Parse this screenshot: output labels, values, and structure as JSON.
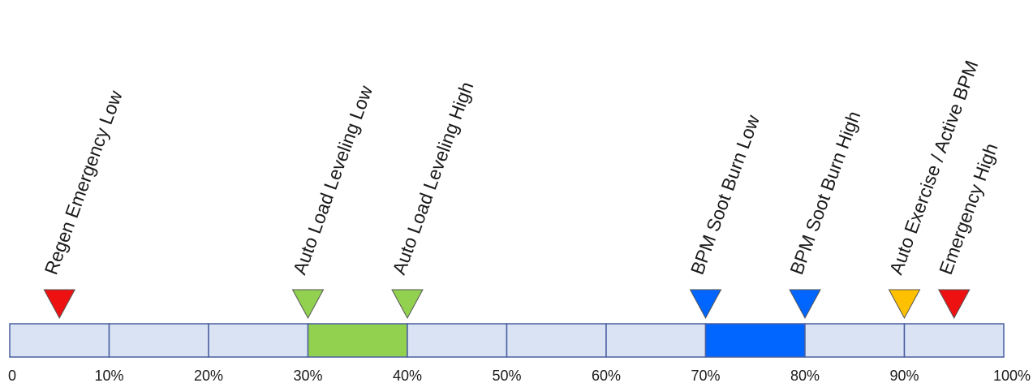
{
  "scale": {
    "min": 0,
    "max": 100,
    "ticks": [
      {
        "value": 0,
        "label": "0"
      },
      {
        "value": 10,
        "label": "10%"
      },
      {
        "value": 20,
        "label": "20%"
      },
      {
        "value": 30,
        "label": "30%"
      },
      {
        "value": 40,
        "label": "40%"
      },
      {
        "value": 50,
        "label": "50%"
      },
      {
        "value": 60,
        "label": "60%"
      },
      {
        "value": 70,
        "label": "70%"
      },
      {
        "value": 80,
        "label": "80%"
      },
      {
        "value": 90,
        "label": "90%"
      },
      {
        "value": 100,
        "label": "100%"
      }
    ]
  },
  "bands": [
    {
      "from": 30,
      "to": 40,
      "color": "#92d050"
    },
    {
      "from": 70,
      "to": 80,
      "color": "#0066ff"
    }
  ],
  "colors": {
    "base_fill": "#dae3f3",
    "border": "#4a5fa0",
    "red": "#ee1111",
    "green": "#92d050",
    "blue": "#0066ff",
    "amber": "#ffc000"
  },
  "markers": [
    {
      "value": 5,
      "label": "Regen Emergency Low",
      "color": "#ee1111",
      "icon": "red-triangle-icon"
    },
    {
      "value": 30,
      "label": "Auto Load Leveling Low",
      "color": "#92d050",
      "icon": "green-triangle-icon"
    },
    {
      "value": 40,
      "label": "Auto Load Leveling High",
      "color": "#92d050",
      "icon": "green-triangle-icon"
    },
    {
      "value": 70,
      "label": "BPM Soot Burn Low",
      "color": "#0066ff",
      "icon": "blue-triangle-icon"
    },
    {
      "value": 80,
      "label": "BPM Soot Burn High",
      "color": "#0066ff",
      "icon": "blue-triangle-icon"
    },
    {
      "value": 90,
      "label": "Auto Exercise / Active BPM",
      "color": "#ffc000",
      "icon": "amber-triangle-icon"
    },
    {
      "value": 95,
      "label": "Emergency High",
      "color": "#ee1111",
      "icon": "red-triangle-icon"
    }
  ]
}
